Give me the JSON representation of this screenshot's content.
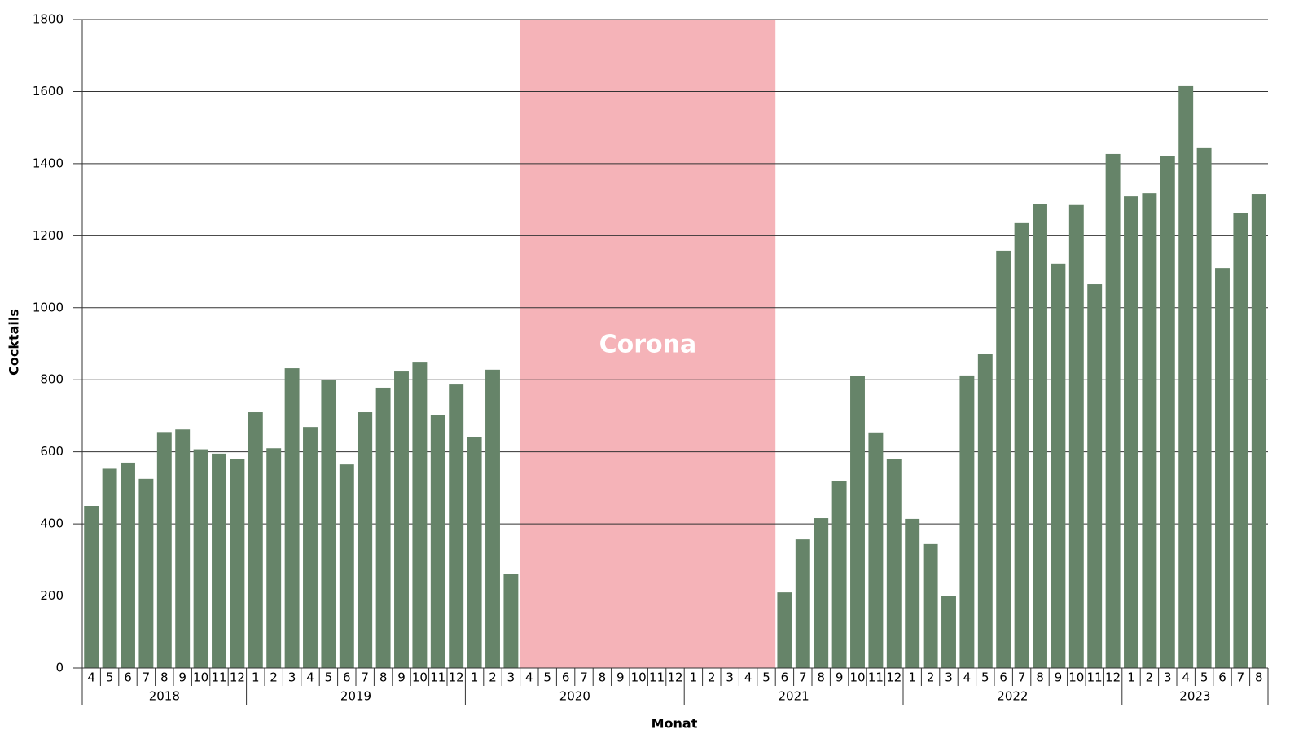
{
  "chart_data": {
    "type": "bar",
    "y_label": "Cocktails",
    "x_label": "Monat",
    "color": "#668469",
    "ylim": [
      0,
      1800
    ],
    "yticks": [
      0,
      200,
      400,
      600,
      800,
      1000,
      1200,
      1400,
      1600,
      1800
    ],
    "grid": true,
    "gap_annotation": {
      "label": "Corona",
      "color": "#f5b3b8"
    },
    "groups": [
      {
        "name": "2018",
        "categories": [
          "4",
          "5",
          "6",
          "7",
          "8",
          "9",
          "10",
          "11",
          "12"
        ],
        "values": [
          450,
          553,
          570,
          525,
          655,
          662,
          607,
          595,
          580
        ]
      },
      {
        "name": "2019",
        "categories": [
          "1",
          "2",
          "3",
          "4",
          "5",
          "6",
          "7",
          "8",
          "9",
          "10",
          "11",
          "12"
        ],
        "values": [
          710,
          610,
          832,
          669,
          800,
          565,
          710,
          778,
          823,
          850,
          703,
          789
        ]
      },
      {
        "name": "2020",
        "categories": [
          "1",
          "2",
          "3",
          "4",
          "5",
          "6",
          "7",
          "8",
          "9",
          "10",
          "11",
          "12"
        ],
        "values": [
          642,
          828,
          262,
          null,
          null,
          null,
          null,
          null,
          null,
          null,
          null,
          null
        ]
      },
      {
        "name": "2021",
        "categories": [
          "1",
          "2",
          "3",
          "4",
          "5",
          "6",
          "7",
          "8",
          "9",
          "10",
          "11",
          "12"
        ],
        "values": [
          null,
          null,
          null,
          null,
          null,
          210,
          357,
          416,
          518,
          810,
          654,
          579
        ]
      },
      {
        "name": "2022",
        "categories": [
          "1",
          "2",
          "3",
          "4",
          "5",
          "6",
          "7",
          "8",
          "9",
          "10",
          "11",
          "12"
        ],
        "values": [
          414,
          344,
          201,
          812,
          871,
          1158,
          1235,
          1287,
          1122,
          1285,
          1065,
          1427
        ]
      },
      {
        "name": "2023",
        "categories": [
          "1",
          "2",
          "3",
          "4",
          "5",
          "6",
          "7",
          "8"
        ],
        "values": [
          1309,
          1318,
          1422,
          1617,
          1443,
          1110,
          1264,
          1316
        ]
      }
    ]
  }
}
